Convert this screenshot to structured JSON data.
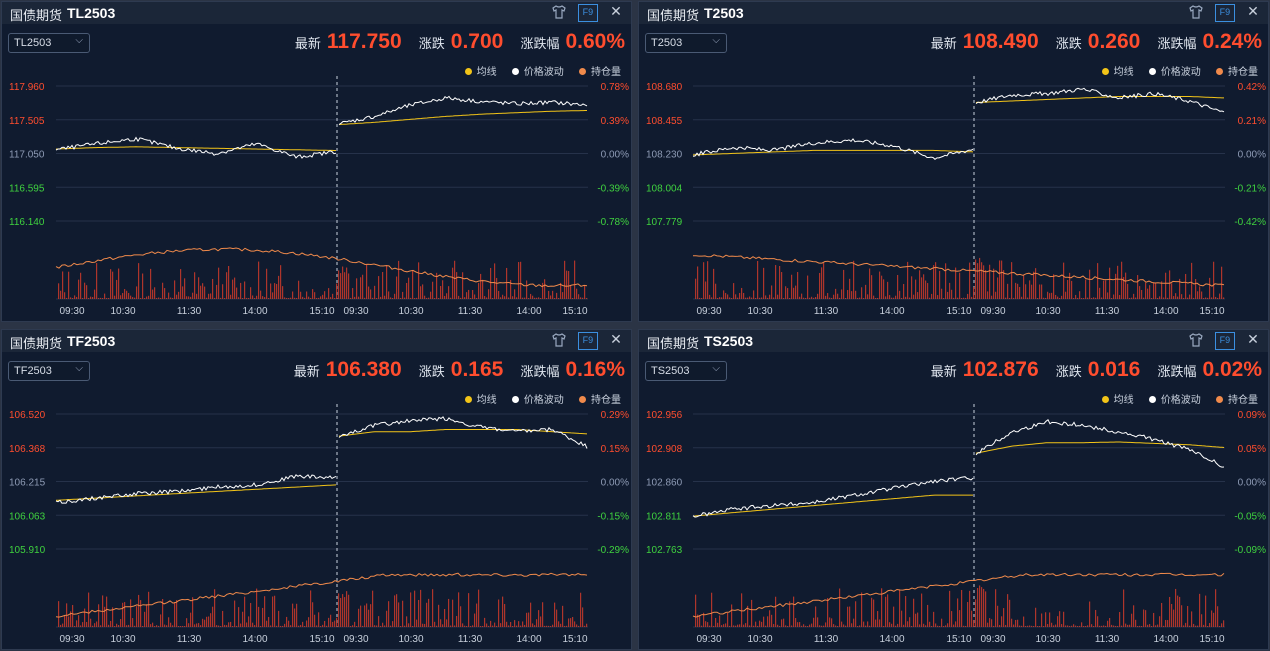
{
  "labels": {
    "category": "国债期货",
    "latest": "最新",
    "change": "涨跌",
    "change_pct": "涨跌幅"
  },
  "legend": [
    {
      "label": "均线",
      "color": "#f2c418"
    },
    {
      "label": "价格波动",
      "color": "#ffffff"
    },
    {
      "label": "持仓量",
      "color": "#f08a4b"
    }
  ],
  "icons": [
    "shirt-icon",
    "f9-icon",
    "close-icon"
  ],
  "f9_label": "F9",
  "colors": {
    "up": "#ff4d2e",
    "down": "#3fd23f",
    "neutral": "#8e9bb5",
    "avg_line": "#f2c418",
    "price_line": "#ffffff",
    "oi_line": "#f08a4b",
    "volume_bar": "#c0392b"
  },
  "panels": [
    {
      "symbol": "TL2503",
      "select_value": "TL2503",
      "latest": "117.750",
      "change": "0.700",
      "change_pct": "0.60%",
      "chart_data": {
        "type": "line",
        "title": "",
        "y_ticks_price": [
          "117.960",
          "117.505",
          "117.050",
          "116.595",
          "116.140"
        ],
        "y_ticks_pct": [
          "0.78%",
          "0.39%",
          "0.00%",
          "-0.39%",
          "-0.78%"
        ],
        "x_ticks": [
          "09:30",
          "10:30",
          "11:30",
          "14:00",
          "15:10",
          "09:30",
          "10:30",
          "11:30",
          "14:00",
          "15:10"
        ],
        "ylim": [
          116.14,
          117.96
        ],
        "series": [
          {
            "name": "均线",
            "day1": [
              117.11,
              117.13,
              117.14,
              117.13,
              117.12,
              117.11,
              117.1,
              117.09
            ],
            "day2": [
              117.44,
              117.47,
              117.51,
              117.55,
              117.58,
              117.6,
              117.62,
              117.63
            ]
          },
          {
            "name": "价格波动",
            "day1": [
              117.1,
              117.18,
              117.25,
              117.12,
              117.05,
              117.18,
              117.0,
              117.08
            ],
            "day2": [
              117.45,
              117.55,
              117.7,
              117.8,
              117.75,
              117.72,
              117.74,
              117.7
            ]
          }
        ]
      }
    },
    {
      "symbol": "T2503",
      "select_value": "T2503",
      "latest": "108.490",
      "change": "0.260",
      "change_pct": "0.24%",
      "chart_data": {
        "type": "line",
        "title": "",
        "y_ticks_price": [
          "108.680",
          "108.455",
          "108.230",
          "108.004",
          "107.779"
        ],
        "y_ticks_pct": [
          "0.42%",
          "0.21%",
          "0.00%",
          "-0.21%",
          "-0.42%"
        ],
        "x_ticks": [
          "09:30",
          "10:30",
          "11:30",
          "14:00",
          "15:10",
          "09:30",
          "10:30",
          "11:30",
          "14:00",
          "15:10"
        ],
        "ylim": [
          107.779,
          108.68
        ],
        "series": [
          {
            "name": "均线",
            "day1": [
              108.22,
              108.23,
              108.24,
              108.25,
              108.25,
              108.25,
              108.25,
              108.24
            ],
            "day2": [
              108.57,
              108.58,
              108.59,
              108.6,
              108.61,
              108.61,
              108.61,
              108.6
            ]
          },
          {
            "name": "价格波动",
            "day1": [
              108.22,
              108.27,
              108.25,
              108.3,
              108.32,
              108.28,
              108.2,
              108.26
            ],
            "day2": [
              108.57,
              108.62,
              108.63,
              108.66,
              108.6,
              108.63,
              108.58,
              108.5
            ]
          }
        ]
      }
    },
    {
      "symbol": "TF2503",
      "select_value": "TF2503",
      "latest": "106.380",
      "change": "0.165",
      "change_pct": "0.16%",
      "chart_data": {
        "type": "line",
        "title": "",
        "y_ticks_price": [
          "106.520",
          "106.368",
          "106.215",
          "106.063",
          "105.910"
        ],
        "y_ticks_pct": [
          "0.29%",
          "0.15%",
          "0.00%",
          "-0.15%",
          "-0.29%"
        ],
        "x_ticks": [
          "09:30",
          "10:30",
          "11:30",
          "14:00",
          "15:10",
          "09:30",
          "10:30",
          "11:30",
          "14:00",
          "15:10"
        ],
        "ylim": [
          105.91,
          106.52
        ],
        "series": [
          {
            "name": "均线",
            "day1": [
              106.13,
              106.14,
              106.15,
              106.16,
              106.17,
              106.18,
              106.19,
              106.2
            ],
            "day2": [
              106.42,
              106.44,
              106.44,
              106.45,
              106.45,
              106.45,
              106.44,
              106.43
            ]
          },
          {
            "name": "价格波动",
            "day1": [
              106.12,
              106.14,
              106.16,
              106.17,
              106.19,
              106.2,
              106.24,
              106.23
            ],
            "day2": [
              106.42,
              106.47,
              106.49,
              106.5,
              106.46,
              106.44,
              106.45,
              106.37
            ]
          }
        ]
      }
    },
    {
      "symbol": "TS2503",
      "select_value": "TS2503",
      "latest": "102.876",
      "change": "0.016",
      "change_pct": "0.02%",
      "chart_data": {
        "type": "line",
        "title": "",
        "y_ticks_price": [
          "102.956",
          "102.908",
          "102.860",
          "102.811",
          "102.763"
        ],
        "y_ticks_pct": [
          "0.09%",
          "0.05%",
          "0.00%",
          "-0.05%",
          "-0.09%"
        ],
        "x_ticks": [
          "09:30",
          "10:30",
          "11:30",
          "14:00",
          "15:10",
          "09:30",
          "10:30",
          "11:30",
          "14:00",
          "15:10"
        ],
        "ylim": [
          102.763,
          102.956
        ],
        "series": [
          {
            "name": "均线",
            "day1": [
              102.81,
              102.815,
              102.82,
              102.825,
              102.83,
              102.835,
              102.84,
              102.84
            ],
            "day2": [
              102.9,
              102.91,
              102.915,
              102.915,
              102.916,
              102.914,
              102.912,
              102.908
            ]
          },
          {
            "name": "价格波动",
            "day1": [
              102.81,
              102.82,
              102.825,
              102.83,
              102.84,
              102.85,
              102.86,
              102.865
            ],
            "day2": [
              102.9,
              102.93,
              102.945,
              102.94,
              102.93,
              102.92,
              102.905,
              102.88
            ]
          }
        ]
      }
    }
  ]
}
